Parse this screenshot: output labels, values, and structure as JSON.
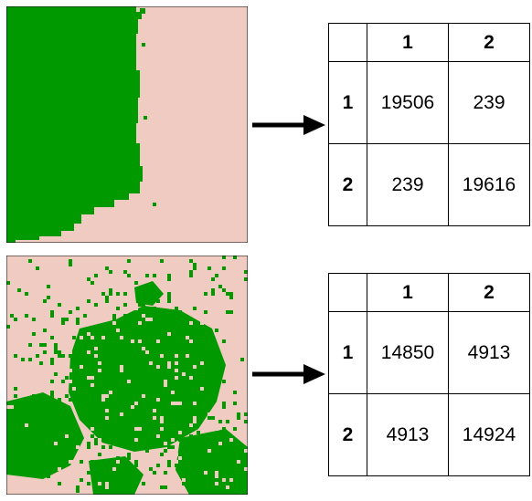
{
  "colors": {
    "forest": "#009900",
    "background": "#f0cbc1",
    "arrow": "#000000",
    "grid": "#000000"
  },
  "top_matrix": {
    "col_headers": [
      "1",
      "2"
    ],
    "rows": [
      {
        "label": "1",
        "cells": [
          "19506",
          "239"
        ]
      },
      {
        "label": "2",
        "cells": [
          "239",
          "19616"
        ]
      }
    ]
  },
  "bottom_matrix": {
    "col_headers": [
      "1",
      "2"
    ],
    "rows": [
      {
        "label": "1",
        "cells": [
          "14850",
          "4913"
        ]
      },
      {
        "label": "2",
        "cells": [
          "4913",
          "14924"
        ]
      }
    ]
  }
}
